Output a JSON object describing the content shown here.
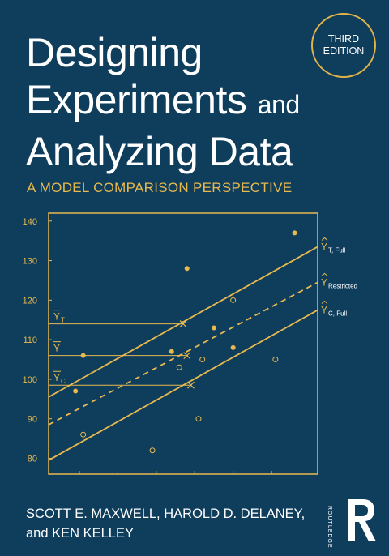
{
  "title": {
    "line1": "Designing",
    "line2_main": "Experiments",
    "line2_small": "and",
    "line3": "Analyzing Data"
  },
  "edition": {
    "line1": "THIRD",
    "line2": "EDITION"
  },
  "subtitle": "A MODEL COMPARISON PERSPECTIVE",
  "authors": {
    "line1": "SCOTT E. MAXWELL, HAROLD D. DELANEY,",
    "line2": "and KEN KELLEY"
  },
  "publisher": {
    "name": "ROUTLEDGE",
    "logo_icon": "routledge-r-logo"
  },
  "colors": {
    "background": "#0f3d5c",
    "accent": "#e8b94e",
    "text": "#ffffff"
  },
  "chart_data": {
    "type": "scatter",
    "xlim": [
      52,
      122
    ],
    "ylim": [
      76,
      142
    ],
    "x_ticks": [
      60,
      70,
      80,
      90,
      100,
      110,
      120
    ],
    "y_ticks": [
      80,
      90,
      100,
      110,
      120,
      130,
      140
    ],
    "grid": false,
    "filled_points": [
      [
        59,
        97
      ],
      [
        61,
        106
      ],
      [
        84,
        107
      ],
      [
        88,
        128
      ],
      [
        95,
        113
      ],
      [
        100,
        108
      ],
      [
        116,
        137
      ]
    ],
    "open_points": [
      [
        61,
        86
      ],
      [
        79,
        82
      ],
      [
        86,
        103
      ],
      [
        91,
        90
      ],
      [
        92,
        105
      ],
      [
        100,
        120
      ],
      [
        111,
        105
      ]
    ],
    "lines": [
      {
        "label_main": "Y",
        "label_sub": "T, Full",
        "style": "solid",
        "y_at_xmin": 95.5,
        "y_at_xmax": 133.5
      },
      {
        "label_main": "Y",
        "label_sub": "Restricted",
        "style": "dashed",
        "y_at_xmin": 88.5,
        "y_at_xmax": 124.5
      },
      {
        "label_main": "Y",
        "label_sub": "C, Full",
        "style": "solid",
        "y_at_xmin": 79.5,
        "y_at_xmax": 117.5
      }
    ],
    "mean_lines": [
      {
        "label_main": "Y",
        "label_sub": "T",
        "y": 114,
        "x_end": 87
      },
      {
        "label_main": "Y",
        "label_sub": "",
        "y": 106,
        "x_end": 88
      },
      {
        "label_main": "Y",
        "label_sub": "C",
        "y": 98.5,
        "x_end": 89
      }
    ]
  }
}
